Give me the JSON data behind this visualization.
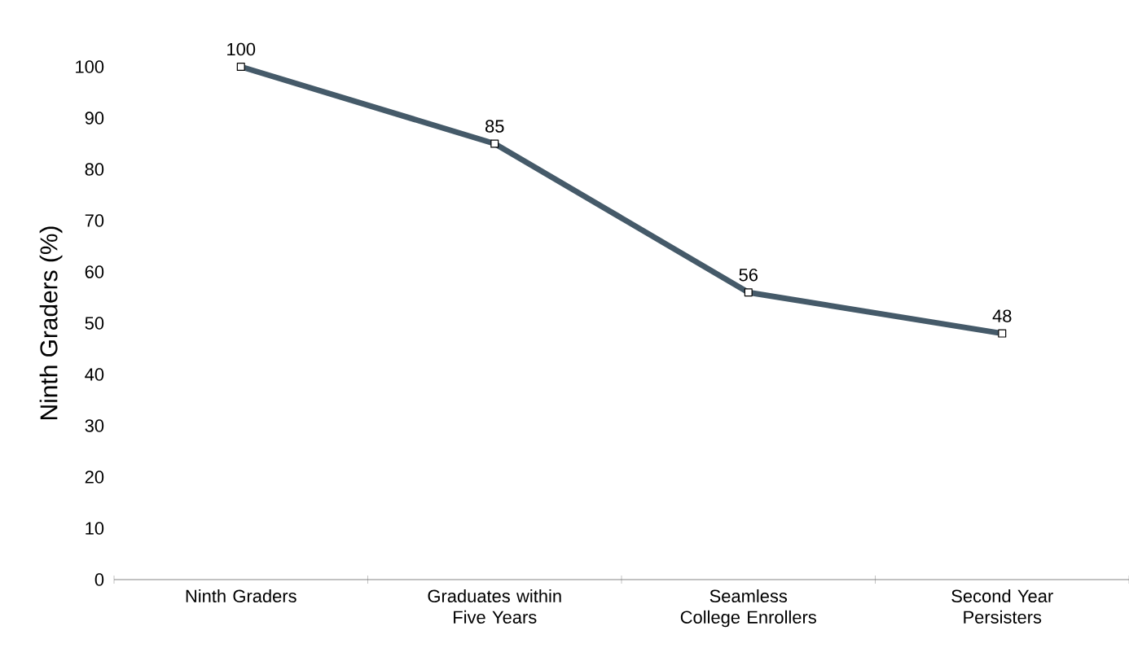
{
  "chart_data": {
    "type": "line",
    "ylabel": "Ninth Graders (%)",
    "categories": [
      "Ninth Graders",
      "Graduates within Five Years",
      "Seamless College Enrollers",
      "Second Year Persisters"
    ],
    "values": [
      100,
      85,
      56,
      48
    ],
    "color": "#455a69",
    "ylim": [
      0,
      100
    ],
    "yticks": [
      0,
      10,
      20,
      30,
      40,
      50,
      60,
      70,
      80,
      90,
      100
    ],
    "data_labels": true,
    "marker": "square",
    "line_style": "solid"
  }
}
